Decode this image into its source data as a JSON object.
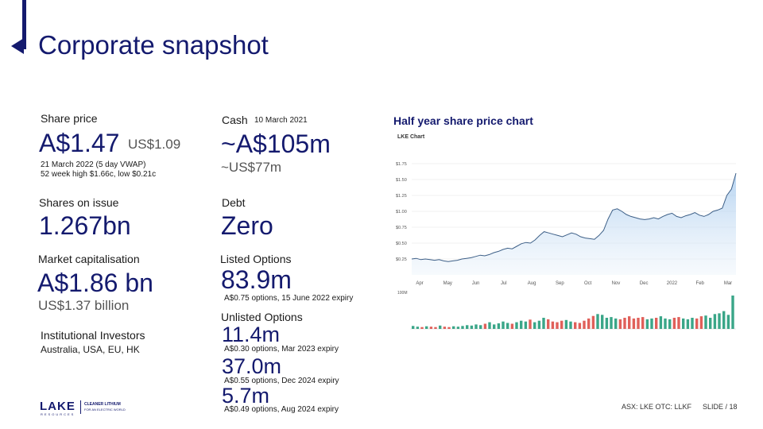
{
  "slide": {
    "title": "Corporate snapshot",
    "share_price": {
      "label": "Share price",
      "value": "A$1.47",
      "usd": "US$1.09",
      "note1": "21 March 2022 (5 day VWAP)",
      "note2": "52 week high $1.66c, low $0.21c"
    },
    "shares_on_issue": {
      "label": "Shares on issue",
      "value": "1.267bn"
    },
    "market_cap": {
      "label": "Market capitalisation",
      "value": "A$1.86 bn",
      "usd": "US$1.37 billion"
    },
    "institutional": {
      "label": "Institutional Investors",
      "value": "Australia, USA, EU, HK"
    },
    "cash": {
      "label": "Cash",
      "date": "10 March 2021",
      "value": "~A$105m",
      "usd": "~US$77m"
    },
    "debt": {
      "label": "Debt",
      "value": "Zero"
    },
    "listed_options": {
      "label": "Listed Options",
      "value": "83.9m",
      "note": "A$0.75 options, 15 June 2022 expiry"
    },
    "unlisted_options": {
      "label": "Unlisted Options",
      "items": [
        {
          "value": "11.4m",
          "note": "A$0.30 options, Mar 2023 expiry"
        },
        {
          "value": "37.0m",
          "note": "A$0.55 options, Dec 2024 expiry"
        },
        {
          "value": "5.7m",
          "note": "A$0.49 options, Aug 2024 expiry"
        }
      ]
    },
    "chart_heading": "Half year share price chart",
    "logo": {
      "word": "LAKE",
      "sub": "RESOURCES",
      "tag1": "CLEANER LITHIUM",
      "tag2": "FOR AN ELECTRIC WORLD"
    },
    "footer": {
      "tickers": "ASX: LKE   OTC: LLKF",
      "slide": "SLIDE / 18"
    }
  },
  "chart_data": {
    "type": "area",
    "title": "LKE Chart",
    "y_ticks": [
      "$1.75",
      "$1.50",
      "$1.25",
      "$1.00",
      "$0.75",
      "$0.50",
      "$0.25"
    ],
    "y_tick_values": [
      1.75,
      1.5,
      1.25,
      1.0,
      0.75,
      0.5,
      0.25
    ],
    "x_ticks": [
      "Apr",
      "May",
      "Jun",
      "Jul",
      "Aug",
      "Sep",
      "Oct",
      "Nov",
      "Dec",
      "2022",
      "Feb",
      "Mar"
    ],
    "ylim": [
      0,
      1.85
    ],
    "volume_label": "100M",
    "price": [
      0.25,
      0.26,
      0.24,
      0.25,
      0.24,
      0.23,
      0.24,
      0.22,
      0.21,
      0.22,
      0.23,
      0.25,
      0.26,
      0.27,
      0.29,
      0.31,
      0.3,
      0.32,
      0.35,
      0.37,
      0.4,
      0.42,
      0.41,
      0.45,
      0.49,
      0.51,
      0.5,
      0.55,
      0.62,
      0.68,
      0.66,
      0.64,
      0.62,
      0.6,
      0.63,
      0.66,
      0.64,
      0.6,
      0.58,
      0.57,
      0.56,
      0.62,
      0.7,
      0.88,
      1.02,
      1.04,
      1.0,
      0.95,
      0.92,
      0.9,
      0.88,
      0.87,
      0.88,
      0.9,
      0.88,
      0.92,
      0.95,
      0.97,
      0.92,
      0.9,
      0.93,
      0.95,
      0.98,
      0.94,
      0.92,
      0.95,
      1.0,
      1.02,
      1.05,
      1.25,
      1.35,
      1.6
    ],
    "volume": [
      8,
      6,
      5,
      7,
      6,
      5,
      9,
      6,
      5,
      7,
      6,
      8,
      10,
      9,
      12,
      10,
      14,
      18,
      12,
      15,
      20,
      16,
      14,
      18,
      22,
      20,
      25,
      18,
      22,
      30,
      26,
      20,
      18,
      22,
      24,
      20,
      18,
      16,
      22,
      28,
      35,
      40,
      38,
      30,
      32,
      28,
      26,
      30,
      34,
      28,
      30,
      32,
      26,
      28,
      30,
      34,
      28,
      26,
      30,
      32,
      28,
      26,
      30,
      28,
      34,
      36,
      30,
      40,
      42,
      48,
      38,
      90
    ]
  }
}
